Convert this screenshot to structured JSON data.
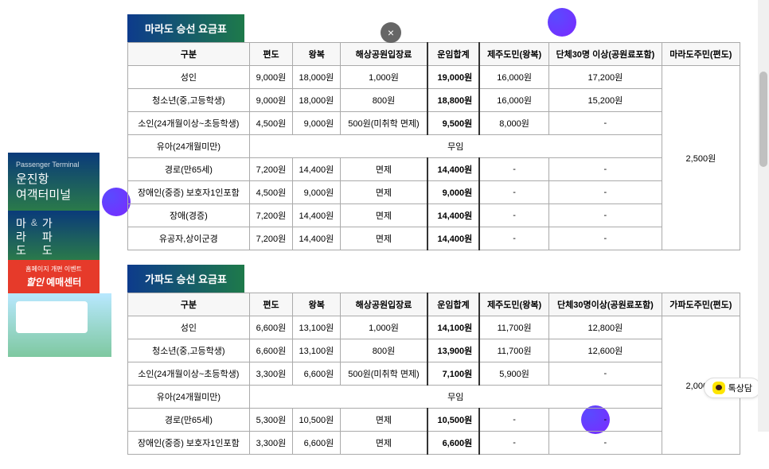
{
  "sidebar": {
    "small_en": "Passenger Terminal",
    "title1": "운진항",
    "title2": "여객터미널",
    "dest1a": "마",
    "dest1b": "라",
    "dest1c": "도",
    "amp": "&",
    "dest2a": "가",
    "dest2b": "파",
    "dest2c": "도",
    "event_small": "홈페이지 개편 이벤트",
    "event_main1": "할인",
    "event_main2": "예매센터"
  },
  "close": "×",
  "chat": "톡상담",
  "table1": {
    "title": "마라도 승선 요금표",
    "headers": [
      "구분",
      "편도",
      "왕복",
      "해상공원입장료",
      "운임합계",
      "제주도민(왕복)",
      "단체30명 이상(공원료포함)",
      "마라도주민(편도)"
    ],
    "rows": [
      {
        "cat": "성인",
        "oneway": "9,000원",
        "round": "18,000원",
        "park": "1,000원",
        "total": "19,000원",
        "jeju": "16,000원",
        "group": "17,200원"
      },
      {
        "cat": "청소년(중,고등학생)",
        "oneway": "9,000원",
        "round": "18,000원",
        "park": "800원",
        "total": "18,800원",
        "jeju": "16,000원",
        "group": "15,200원"
      },
      {
        "cat": "소인(24개월이상~초등학생)",
        "oneway": "4,500원",
        "round": "9,000원",
        "park": "500원(미취학 면제)",
        "total": "9,500원",
        "jeju": "8,000원",
        "group": "-"
      },
      {
        "cat": "유아(24개월미만)",
        "free": "무임"
      },
      {
        "cat": "경로(만65세)",
        "oneway": "7,200원",
        "round": "14,400원",
        "park": "면제",
        "total": "14,400원",
        "jeju": "-",
        "group": "-"
      },
      {
        "cat": "장애인(중증) 보호자1인포함",
        "oneway": "4,500원",
        "round": "9,000원",
        "park": "면제",
        "total": "9,000원",
        "jeju": "-",
        "group": "-"
      },
      {
        "cat": "장애(경증)",
        "oneway": "7,200원",
        "round": "14,400원",
        "park": "면제",
        "total": "14,400원",
        "jeju": "-",
        "group": "-"
      },
      {
        "cat": "유공자,상이군경",
        "oneway": "7,200원",
        "round": "14,400원",
        "park": "면제",
        "total": "14,400원",
        "jeju": "-",
        "group": "-"
      }
    ],
    "resident": "2,500원"
  },
  "table2": {
    "title": "가파도 승선 요금표",
    "headers": [
      "구분",
      "편도",
      "왕복",
      "해상공원입장료",
      "운임합계",
      "제주도민(왕복)",
      "단체30명이상(공원료포함)",
      "가파도주민(편도)"
    ],
    "rows": [
      {
        "cat": "성인",
        "oneway": "6,600원",
        "round": "13,100원",
        "park": "1,000원",
        "total": "14,100원",
        "jeju": "11,700원",
        "group": "12,800원"
      },
      {
        "cat": "청소년(중,고등학생)",
        "oneway": "6,600원",
        "round": "13,100원",
        "park": "800원",
        "total": "13,900원",
        "jeju": "11,700원",
        "group": "12,600원"
      },
      {
        "cat": "소인(24개월이상~초등학생)",
        "oneway": "3,300원",
        "round": "6,600원",
        "park": "500원(미취학 면제)",
        "total": "7,100원",
        "jeju": "5,900원",
        "group": "-"
      },
      {
        "cat": "유아(24개월미만)",
        "free": "무임"
      },
      {
        "cat": "경로(만65세)",
        "oneway": "5,300원",
        "round": "10,500원",
        "park": "면제",
        "total": "10,500원",
        "jeju": "-",
        "group": "-"
      },
      {
        "cat": "장애인(중증) 보호자1인포함",
        "oneway": "3,300원",
        "round": "6,600원",
        "park": "면제",
        "total": "6,600원",
        "jeju": "-",
        "group": "-"
      }
    ],
    "resident": "2,000원"
  },
  "colors": {
    "title_grad_start": "#0d3b8c",
    "title_grad_end": "#1e7a4a",
    "bubble_start": "#5a4aff",
    "bubble_end": "#7a2aff",
    "event_bg": "#e63a2a"
  }
}
